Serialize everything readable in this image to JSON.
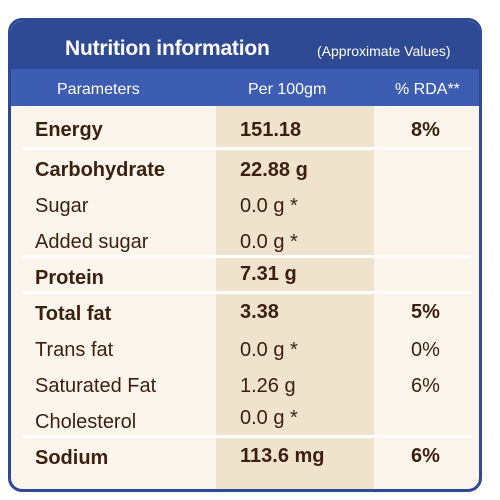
{
  "title": "Nutrition information",
  "subtitle": "(Approximate Values)",
  "headers": {
    "parameters": "Parameters",
    "per100": "Per 100gm",
    "rda": "% RDA**"
  },
  "rows": [
    {
      "name": "Energy",
      "per100": "151.18",
      "rda": "8%",
      "bold": true
    },
    {
      "name": "Carbohydrate",
      "per100": "22.88 g",
      "rda": "",
      "bold": true
    },
    {
      "name": "Sugar",
      "per100": "0.0 g *",
      "rda": "",
      "bold": false
    },
    {
      "name": "Added sugar",
      "per100": "0.0 g *",
      "rda": "",
      "bold": false
    },
    {
      "name": "Protein",
      "per100": "7.31 g",
      "rda": "",
      "bold": true
    },
    {
      "name": "Total fat",
      "per100": "3.38",
      "rda": "5%",
      "bold": true
    },
    {
      "name": "Trans fat",
      "per100": "0.0 g *",
      "rda": "0%",
      "bold": false
    },
    {
      "name": "Saturated Fat",
      "per100": "1.26 g",
      "rda": "6%",
      "bold": false
    },
    {
      "name": "Cholesterol",
      "per100": "0.0 g *",
      "rda": "",
      "bold": false
    },
    {
      "name": "Sodium",
      "per100": "113.6 mg",
      "rda": "6%",
      "bold": true
    }
  ],
  "colors": {
    "header_dark": "#2e4a95",
    "header_light": "#3d5db3",
    "background": "#fbf5ec",
    "value_column": "#f0e3cd",
    "text": "#3b1f0f"
  }
}
